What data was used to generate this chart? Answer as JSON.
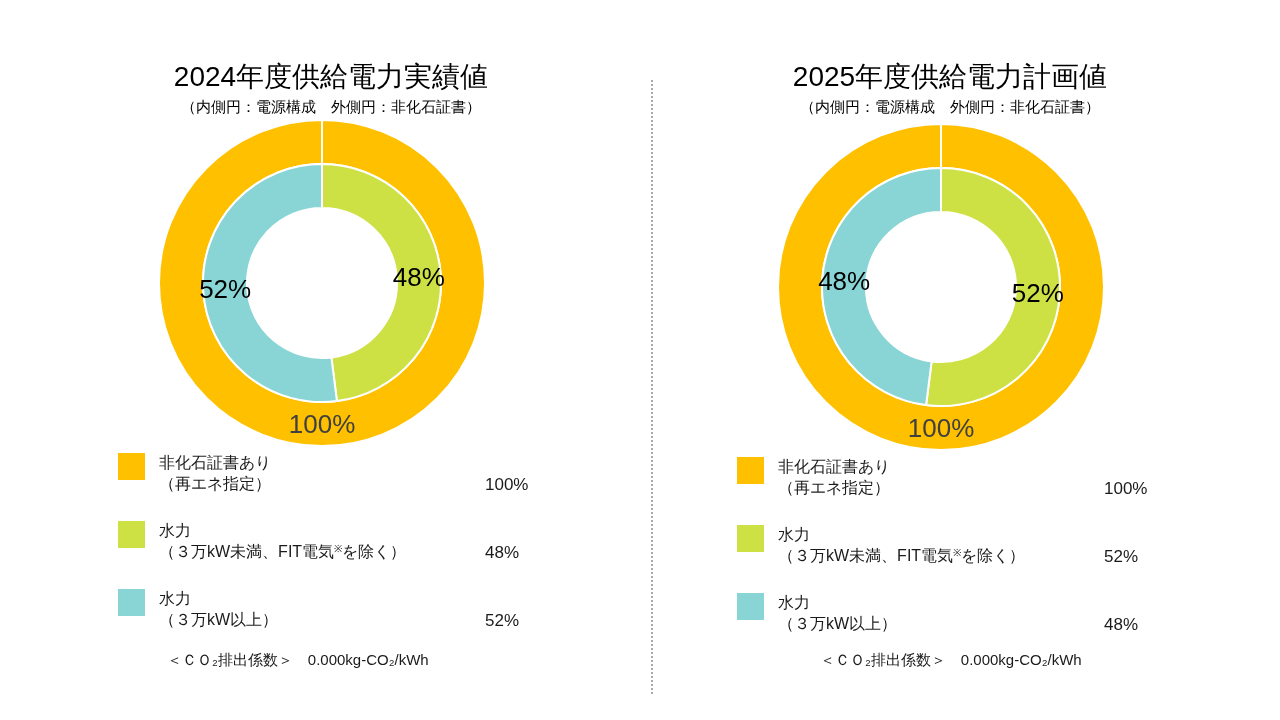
{
  "chart_data": [
    {
      "type": "donut",
      "title": "2024年度供給電力実績値",
      "subtitle": "（内側円：電源構成　外側円：非化石証書）",
      "categories": [
        "非化石証書あり（再エネ指定）",
        "水力（３万kW未満、FIT電気$^{※}$を除く）",
        "水力（３万kW以上）"
      ],
      "colors": [
        "#ffc000",
        "#cee144",
        "#89d4d4"
      ],
      "series": [
        {
          "values": [
            100,
            null,
            null
          ],
          "value_labels": [
            "100%",
            null,
            null
          ]
        },
        {
          "values": [
            null,
            48,
            52
          ],
          "value_labels": [
            null,
            "48%",
            "52%"
          ]
        }
      ],
      "legend": "bottom",
      "annotations": [
        "＜ＣＯ₂排出係数＞　0.000kg-CO₂/kWh"
      ]
    },
    {
      "type": "donut",
      "title": "2025年度供給電力計画値",
      "subtitle": "（内側円：電源構成　外側円：非化石証書）",
      "categories": [
        "非化石証書あり（再エネ指定）",
        "水力（３万kW未満、FIT電気$^{※}$を除く）",
        "水力（３万kW以上）"
      ],
      "colors": [
        "#ffc000",
        "#cee144",
        "#89d4d4"
      ],
      "series": [
        {
          "values": [
            100,
            null,
            null
          ],
          "value_labels": [
            "100%",
            null,
            null
          ]
        },
        {
          "values": [
            null,
            52,
            48
          ],
          "value_labels": [
            null,
            "52%",
            "48%"
          ]
        }
      ],
      "legend": "bottom",
      "annotations": [
        "＜ＣＯ₂排出係数＞　0.000kg-CO₂/kWh"
      ]
    }
  ]
}
